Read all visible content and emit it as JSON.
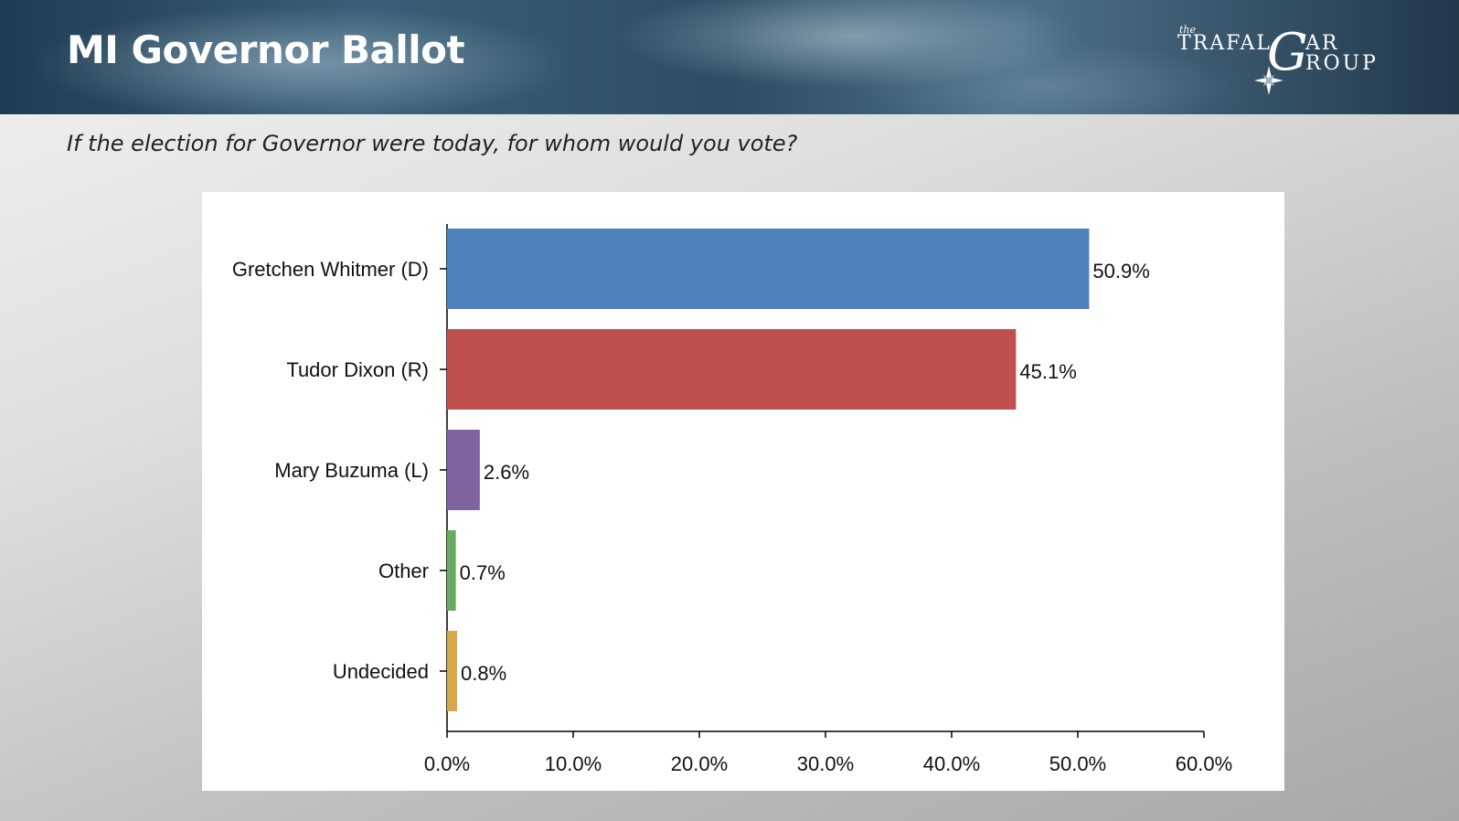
{
  "header": {
    "title": "MI Governor Ballot",
    "logo": {
      "text_small": "the",
      "text_top": "TRAFAL",
      "text_big": "G",
      "text_top2": "AR",
      "text_bottom": "ROUP",
      "icon": "compass-star-icon"
    }
  },
  "subtitle": "If the election for Governor were today, for whom would you vote?",
  "chart_data": {
    "type": "bar",
    "orientation": "horizontal",
    "categories": [
      "Gretchen Whitmer (D)",
      "Tudor Dixon (R)",
      "Mary Buzuma (L)",
      "Other",
      "Undecided"
    ],
    "values": [
      50.9,
      45.1,
      2.6,
      0.7,
      0.8
    ],
    "value_labels": [
      "50.9%",
      "45.1%",
      "2.6%",
      "0.7%",
      "0.8%"
    ],
    "colors": [
      "#4f81bd",
      "#c0504d",
      "#8064a2",
      "#6aaa64",
      "#d6a84a"
    ],
    "xlim": [
      0,
      60
    ],
    "xticks": [
      0,
      10,
      20,
      30,
      40,
      50,
      60
    ],
    "xtick_labels": [
      "0.0%",
      "10.0%",
      "20.0%",
      "30.0%",
      "40.0%",
      "50.0%",
      "60.0%"
    ],
    "grid": false,
    "legend": false
  }
}
